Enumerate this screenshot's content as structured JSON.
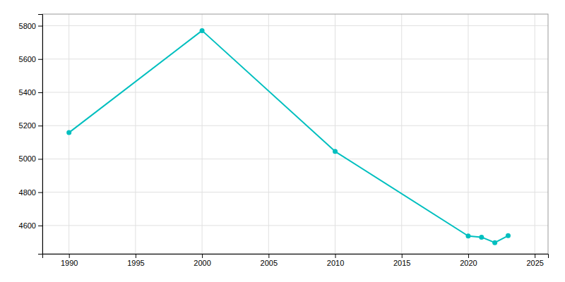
{
  "chart_data": {
    "type": "line",
    "x": [
      1990,
      2000,
      2010,
      2020,
      2021,
      2022,
      2023
    ],
    "values": [
      5158,
      5771,
      5045,
      4537,
      4530,
      4497,
      4539
    ],
    "color": "#00bfbf",
    "marker": "circle",
    "xlim": [
      1988,
      2026
    ],
    "ylim": [
      4430,
      5870
    ],
    "xticks": [
      1990,
      1995,
      2000,
      2005,
      2010,
      2015,
      2020,
      2025
    ],
    "yticks": [
      4600,
      4800,
      5000,
      5200,
      5400,
      5600,
      5800
    ],
    "grid": true
  }
}
